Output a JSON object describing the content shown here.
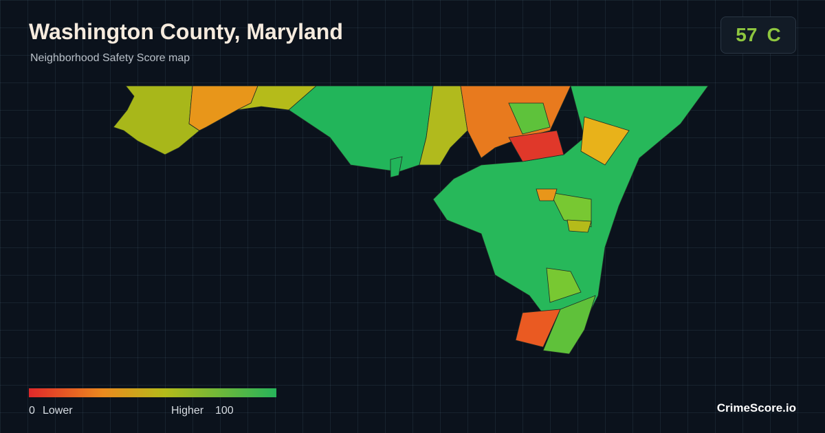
{
  "header": {
    "title": "Washington County, Maryland",
    "subtitle": "Neighborhood Safety Score map"
  },
  "score": {
    "value": "57",
    "grade": "C"
  },
  "legend": {
    "min": "0",
    "min_label": "Lower",
    "max_label": "Higher",
    "max": "100"
  },
  "brand": "CrimeScore.io"
}
